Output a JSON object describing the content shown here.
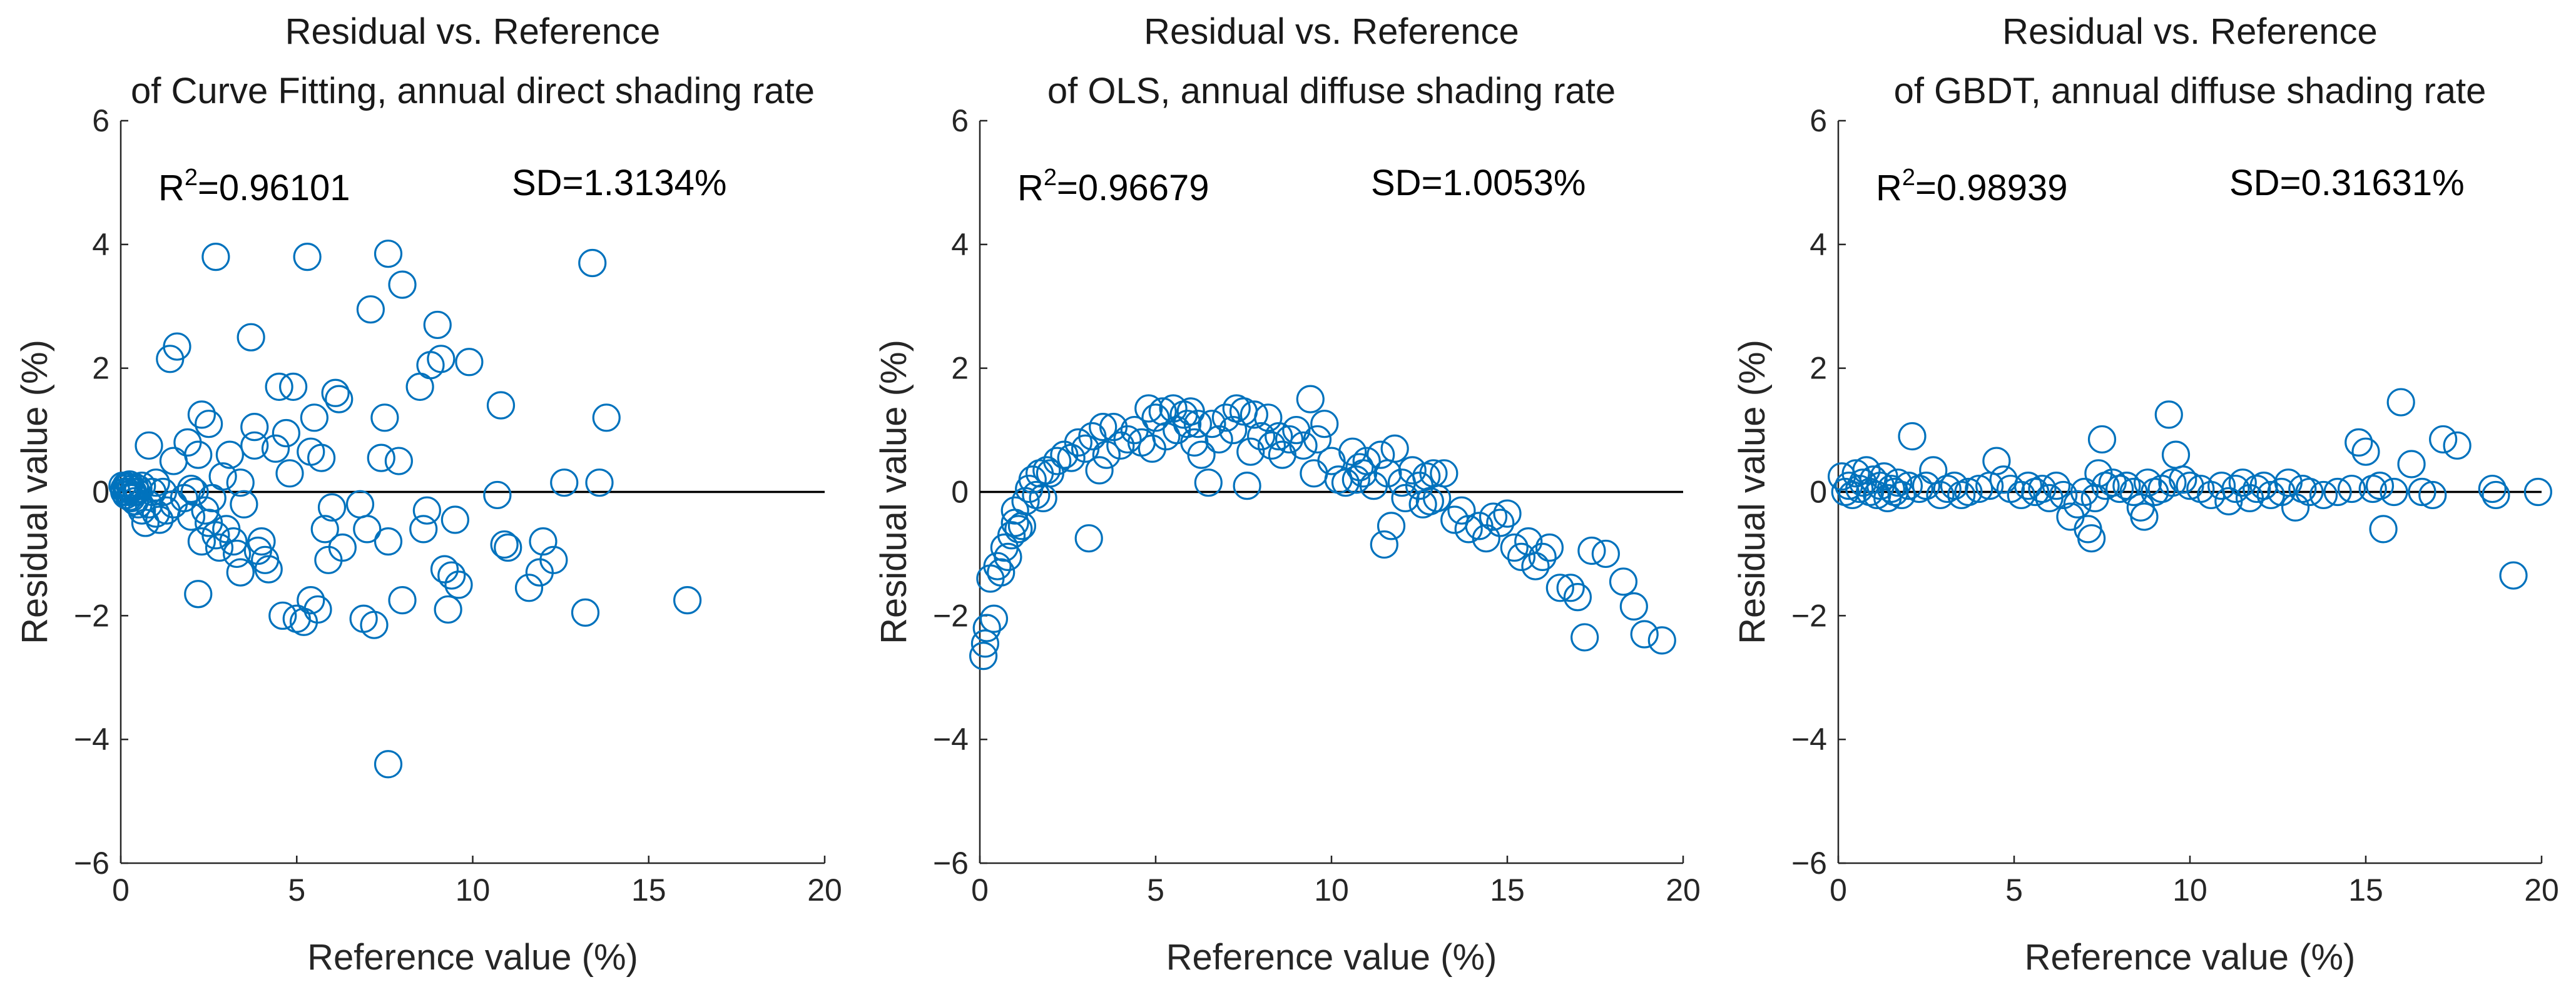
{
  "chart_data": [
    {
      "type": "scatter",
      "title_line1": "Residual vs. Reference",
      "title_line2": "of Curve Fitting, annual direct shading rate",
      "xlabel": "Reference value (%)",
      "ylabel": "Residual value (%)",
      "xlim": [
        0,
        20
      ],
      "ylim": [
        -6,
        6
      ],
      "xticks": [
        "0",
        "5",
        "10",
        "15",
        "20"
      ],
      "yticks": [
        "−6",
        "−4",
        "−2",
        "0",
        "2",
        "4",
        "6"
      ],
      "r2_label": "R",
      "r2_exp": "2",
      "r2_value": "=0.96101",
      "sd_text": "SD=1.3134%",
      "reference_line_y": 0,
      "points": [
        [
          0.05,
          0.1
        ],
        [
          0.1,
          0.05
        ],
        [
          0.1,
          0.0
        ],
        [
          0.15,
          0.1
        ],
        [
          0.15,
          -0.05
        ],
        [
          0.2,
          0.08
        ],
        [
          0.2,
          0.0
        ],
        [
          0.25,
          0.12
        ],
        [
          0.25,
          -0.08
        ],
        [
          0.3,
          0.05
        ],
        [
          0.3,
          -0.1
        ],
        [
          0.35,
          0.0
        ],
        [
          0.4,
          0.08
        ],
        [
          0.4,
          -0.15
        ],
        [
          0.45,
          0.0
        ],
        [
          0.5,
          -0.2
        ],
        [
          0.5,
          0.05
        ],
        [
          0.6,
          -0.3
        ],
        [
          0.6,
          0.1
        ],
        [
          0.7,
          -0.5
        ],
        [
          0.8,
          0.75
        ],
        [
          0.8,
          -0.2
        ],
        [
          0.9,
          0.0
        ],
        [
          1.0,
          -0.35
        ],
        [
          1.0,
          0.15
        ],
        [
          1.1,
          -0.45
        ],
        [
          1.2,
          0.0
        ],
        [
          1.3,
          -0.3
        ],
        [
          1.4,
          2.15
        ],
        [
          1.5,
          -0.2
        ],
        [
          1.5,
          0.5
        ],
        [
          1.6,
          2.35
        ],
        [
          1.8,
          -0.1
        ],
        [
          1.9,
          0.8
        ],
        [
          2.0,
          0.05
        ],
        [
          2.0,
          -0.4
        ],
        [
          2.1,
          0.0
        ],
        [
          2.2,
          -1.65
        ],
        [
          2.2,
          0.6
        ],
        [
          2.3,
          -0.8
        ],
        [
          2.3,
          1.25
        ],
        [
          2.4,
          -0.3
        ],
        [
          2.5,
          -0.5
        ],
        [
          2.5,
          1.1
        ],
        [
          2.6,
          -0.1
        ],
        [
          2.7,
          3.8
        ],
        [
          2.7,
          -0.7
        ],
        [
          2.8,
          -0.9
        ],
        [
          2.9,
          0.25
        ],
        [
          3.0,
          -0.6
        ],
        [
          3.1,
          0.6
        ],
        [
          3.2,
          -0.8
        ],
        [
          3.3,
          -1.0
        ],
        [
          3.4,
          0.15
        ],
        [
          3.4,
          -1.3
        ],
        [
          3.5,
          -0.2
        ],
        [
          3.7,
          2.5
        ],
        [
          3.8,
          1.05
        ],
        [
          3.8,
          0.75
        ],
        [
          3.9,
          -0.95
        ],
        [
          4.0,
          -0.8
        ],
        [
          4.1,
          -1.1
        ],
        [
          4.2,
          -1.25
        ],
        [
          4.4,
          0.7
        ],
        [
          4.5,
          1.7
        ],
        [
          4.6,
          -2.0
        ],
        [
          4.7,
          0.95
        ],
        [
          4.8,
          0.3
        ],
        [
          4.9,
          1.7
        ],
        [
          5.0,
          -2.05
        ],
        [
          5.2,
          -2.1
        ],
        [
          5.3,
          3.8
        ],
        [
          5.4,
          -1.75
        ],
        [
          5.4,
          0.65
        ],
        [
          5.5,
          1.2
        ],
        [
          5.6,
          -1.9
        ],
        [
          5.7,
          0.55
        ],
        [
          5.8,
          -0.6
        ],
        [
          5.9,
          -1.1
        ],
        [
          6.0,
          -0.25
        ],
        [
          6.1,
          1.6
        ],
        [
          6.2,
          1.5
        ],
        [
          6.3,
          -0.9
        ],
        [
          6.8,
          -0.2
        ],
        [
          6.9,
          -2.05
        ],
        [
          7.0,
          -0.6
        ],
        [
          7.1,
          2.95
        ],
        [
          7.2,
          -2.15
        ],
        [
          7.4,
          0.55
        ],
        [
          7.5,
          1.2
        ],
        [
          7.6,
          3.85
        ],
        [
          7.6,
          -0.8
        ],
        [
          7.6,
          -4.4
        ],
        [
          7.9,
          0.5
        ],
        [
          8.0,
          3.35
        ],
        [
          8.0,
          -1.75
        ],
        [
          8.5,
          1.7
        ],
        [
          8.6,
          -0.6
        ],
        [
          8.7,
          -0.3
        ],
        [
          8.8,
          2.05
        ],
        [
          9.0,
          2.7
        ],
        [
          9.1,
          2.15
        ],
        [
          9.2,
          -1.25
        ],
        [
          9.3,
          -1.9
        ],
        [
          9.4,
          -1.35
        ],
        [
          9.5,
          -0.45
        ],
        [
          9.6,
          -1.5
        ],
        [
          9.9,
          2.1
        ],
        [
          10.7,
          -0.05
        ],
        [
          10.8,
          1.4
        ],
        [
          10.9,
          -0.85
        ],
        [
          11.0,
          -0.9
        ],
        [
          11.6,
          -1.55
        ],
        [
          11.9,
          -1.3
        ],
        [
          12.0,
          -0.8
        ],
        [
          12.3,
          -1.1
        ],
        [
          12.6,
          0.15
        ],
        [
          13.2,
          -1.95
        ],
        [
          13.4,
          3.7
        ],
        [
          13.6,
          0.15
        ],
        [
          13.8,
          1.2
        ],
        [
          16.1,
          -1.75
        ]
      ]
    },
    {
      "type": "scatter",
      "title_line1": "Residual vs. Reference",
      "title_line2": "of OLS, annual diffuse shading rate",
      "xlabel": "Reference value (%)",
      "ylabel": "Residual value (%)",
      "xlim": [
        0,
        20
      ],
      "ylim": [
        -6,
        6
      ],
      "xticks": [
        "0",
        "5",
        "10",
        "15",
        "20"
      ],
      "yticks": [
        "−6",
        "−4",
        "−2",
        "0",
        "2",
        "4",
        "6"
      ],
      "r2_label": "R",
      "r2_exp": "2",
      "r2_value": "=0.96679",
      "sd_text": "SD=1.0053%",
      "reference_line_y": 0,
      "points": [
        [
          0.1,
          -2.65
        ],
        [
          0.15,
          -2.45
        ],
        [
          0.2,
          -2.2
        ],
        [
          0.3,
          -1.4
        ],
        [
          0.4,
          -2.05
        ],
        [
          0.5,
          -1.2
        ],
        [
          0.6,
          -1.3
        ],
        [
          0.7,
          -0.9
        ],
        [
          0.8,
          -1.05
        ],
        [
          0.9,
          -0.7
        ],
        [
          1.0,
          -0.5
        ],
        [
          1.0,
          -0.3
        ],
        [
          1.1,
          -0.6
        ],
        [
          1.2,
          -0.55
        ],
        [
          1.3,
          -0.15
        ],
        [
          1.4,
          0.05
        ],
        [
          1.5,
          0.2
        ],
        [
          1.6,
          -0.05
        ],
        [
          1.7,
          0.3
        ],
        [
          1.8,
          -0.1
        ],
        [
          1.9,
          0.35
        ],
        [
          2.0,
          0.3
        ],
        [
          2.2,
          0.5
        ],
        [
          2.4,
          0.6
        ],
        [
          2.6,
          0.55
        ],
        [
          2.8,
          0.8
        ],
        [
          3.0,
          0.7
        ],
        [
          3.1,
          -0.75
        ],
        [
          3.2,
          0.9
        ],
        [
          3.4,
          0.35
        ],
        [
          3.5,
          1.05
        ],
        [
          3.6,
          0.6
        ],
        [
          3.8,
          1.05
        ],
        [
          4.0,
          0.75
        ],
        [
          4.2,
          0.85
        ],
        [
          4.4,
          1.0
        ],
        [
          4.6,
          0.8
        ],
        [
          4.8,
          1.35
        ],
        [
          4.9,
          0.7
        ],
        [
          5.0,
          1.2
        ],
        [
          5.2,
          1.3
        ],
        [
          5.3,
          0.9
        ],
        [
          5.5,
          1.35
        ],
        [
          5.6,
          1.0
        ],
        [
          5.8,
          1.25
        ],
        [
          5.9,
          1.1
        ],
        [
          6.0,
          1.3
        ],
        [
          6.1,
          0.8
        ],
        [
          6.2,
          1.1
        ],
        [
          6.3,
          0.6
        ],
        [
          6.5,
          0.15
        ],
        [
          6.6,
          1.1
        ],
        [
          6.8,
          0.85
        ],
        [
          7.0,
          1.2
        ],
        [
          7.2,
          1.0
        ],
        [
          7.3,
          1.35
        ],
        [
          7.5,
          1.3
        ],
        [
          7.6,
          0.1
        ],
        [
          7.7,
          0.65
        ],
        [
          7.8,
          1.25
        ],
        [
          8.0,
          0.9
        ],
        [
          8.2,
          1.2
        ],
        [
          8.3,
          0.75
        ],
        [
          8.5,
          0.9
        ],
        [
          8.6,
          0.6
        ],
        [
          8.8,
          0.85
        ],
        [
          9.0,
          1.0
        ],
        [
          9.2,
          0.75
        ],
        [
          9.4,
          1.5
        ],
        [
          9.5,
          0.3
        ],
        [
          9.6,
          0.85
        ],
        [
          9.8,
          1.1
        ],
        [
          10.0,
          0.5
        ],
        [
          10.2,
          0.2
        ],
        [
          10.4,
          0.15
        ],
        [
          10.6,
          0.65
        ],
        [
          10.7,
          0.2
        ],
        [
          10.8,
          0.4
        ],
        [
          10.9,
          0.3
        ],
        [
          11.0,
          0.5
        ],
        [
          11.2,
          0.1
        ],
        [
          11.4,
          0.6
        ],
        [
          11.5,
          -0.85
        ],
        [
          11.6,
          0.3
        ],
        [
          11.7,
          -0.55
        ],
        [
          11.8,
          0.7
        ],
        [
          12.0,
          0.15
        ],
        [
          12.1,
          -0.1
        ],
        [
          12.3,
          0.35
        ],
        [
          12.5,
          0.1
        ],
        [
          12.6,
          -0.2
        ],
        [
          12.7,
          0.25
        ],
        [
          12.8,
          -0.15
        ],
        [
          12.9,
          0.3
        ],
        [
          13.0,
          -0.1
        ],
        [
          13.2,
          0.3
        ],
        [
          13.5,
          -0.45
        ],
        [
          13.7,
          -0.3
        ],
        [
          13.9,
          -0.6
        ],
        [
          14.2,
          -0.55
        ],
        [
          14.4,
          -0.75
        ],
        [
          14.6,
          -0.4
        ],
        [
          14.8,
          -0.5
        ],
        [
          15.0,
          -0.35
        ],
        [
          15.2,
          -0.9
        ],
        [
          15.4,
          -1.05
        ],
        [
          15.6,
          -0.8
        ],
        [
          15.8,
          -1.2
        ],
        [
          16.0,
          -1.05
        ],
        [
          16.2,
          -0.9
        ],
        [
          16.5,
          -1.55
        ],
        [
          16.8,
          -1.55
        ],
        [
          17.0,
          -1.7
        ],
        [
          17.2,
          -2.35
        ],
        [
          17.4,
          -0.95
        ],
        [
          17.8,
          -1.0
        ],
        [
          18.3,
          -1.45
        ],
        [
          18.6,
          -1.85
        ],
        [
          18.9,
          -2.3
        ],
        [
          19.4,
          -2.4
        ]
      ]
    },
    {
      "type": "scatter",
      "title_line1": "Residual vs. Reference",
      "title_line2": "of GBDT, annual diffuse shading rate",
      "xlabel": "Reference value (%)",
      "ylabel": "Residual value (%)",
      "xlim": [
        0,
        20
      ],
      "ylim": [
        -6,
        6
      ],
      "xticks": [
        "0",
        "5",
        "10",
        "15",
        "20"
      ],
      "yticks": [
        "−6",
        "−4",
        "−2",
        "0",
        "2",
        "4",
        "6"
      ],
      "r2_label": "R",
      "r2_exp": "2",
      "r2_value": "=0.98939",
      "sd_text": "SD=0.31631%",
      "reference_line_y": 0,
      "points": [
        [
          0.1,
          0.25
        ],
        [
          0.2,
          0.0
        ],
        [
          0.3,
          0.1
        ],
        [
          0.4,
          -0.05
        ],
        [
          0.5,
          0.3
        ],
        [
          0.6,
          0.05
        ],
        [
          0.7,
          0.15
        ],
        [
          0.8,
          0.35
        ],
        [
          0.9,
          0.0
        ],
        [
          1.0,
          0.2
        ],
        [
          1.1,
          -0.05
        ],
        [
          1.2,
          0.1
        ],
        [
          1.3,
          0.25
        ],
        [
          1.4,
          -0.1
        ],
        [
          1.5,
          0.05
        ],
        [
          1.6,
          0.0
        ],
        [
          1.7,
          0.15
        ],
        [
          1.8,
          -0.05
        ],
        [
          2.0,
          0.1
        ],
        [
          2.1,
          0.9
        ],
        [
          2.3,
          0.05
        ],
        [
          2.5,
          0.1
        ],
        [
          2.7,
          0.35
        ],
        [
          2.9,
          -0.05
        ],
        [
          3.1,
          0.05
        ],
        [
          3.3,
          0.1
        ],
        [
          3.5,
          -0.05
        ],
        [
          3.7,
          0.0
        ],
        [
          4.0,
          0.05
        ],
        [
          4.3,
          0.1
        ],
        [
          4.5,
          0.5
        ],
        [
          4.7,
          0.2
        ],
        [
          4.9,
          0.05
        ],
        [
          5.2,
          -0.05
        ],
        [
          5.4,
          0.1
        ],
        [
          5.6,
          0.0
        ],
        [
          5.8,
          0.05
        ],
        [
          6.0,
          -0.1
        ],
        [
          6.2,
          0.1
        ],
        [
          6.4,
          -0.05
        ],
        [
          6.6,
          -0.4
        ],
        [
          6.8,
          -0.2
        ],
        [
          7.0,
          0.0
        ],
        [
          7.1,
          -0.6
        ],
        [
          7.2,
          -0.75
        ],
        [
          7.3,
          -0.1
        ],
        [
          7.4,
          0.3
        ],
        [
          7.5,
          0.85
        ],
        [
          7.6,
          0.1
        ],
        [
          7.8,
          0.15
        ],
        [
          8.0,
          0.05
        ],
        [
          8.2,
          0.1
        ],
        [
          8.4,
          0.0
        ],
        [
          8.6,
          -0.25
        ],
        [
          8.7,
          -0.4
        ],
        [
          8.8,
          0.15
        ],
        [
          9.0,
          0.0
        ],
        [
          9.2,
          0.05
        ],
        [
          9.4,
          1.25
        ],
        [
          9.5,
          0.15
        ],
        [
          9.6,
          0.6
        ],
        [
          9.8,
          0.2
        ],
        [
          10.0,
          0.1
        ],
        [
          10.3,
          0.05
        ],
        [
          10.6,
          -0.05
        ],
        [
          10.9,
          0.1
        ],
        [
          11.1,
          -0.15
        ],
        [
          11.3,
          0.05
        ],
        [
          11.5,
          0.15
        ],
        [
          11.7,
          -0.1
        ],
        [
          11.9,
          0.05
        ],
        [
          12.1,
          0.1
        ],
        [
          12.3,
          -0.05
        ],
        [
          12.6,
          0.0
        ],
        [
          12.8,
          0.15
        ],
        [
          13.0,
          -0.25
        ],
        [
          13.2,
          0.05
        ],
        [
          13.4,
          0.0
        ],
        [
          13.8,
          -0.05
        ],
        [
          14.2,
          0.0
        ],
        [
          14.6,
          0.05
        ],
        [
          14.8,
          0.8
        ],
        [
          15.0,
          0.65
        ],
        [
          15.2,
          0.05
        ],
        [
          15.4,
          0.1
        ],
        [
          15.5,
          -0.6
        ],
        [
          15.8,
          0.0
        ],
        [
          16.0,
          1.45
        ],
        [
          16.3,
          0.45
        ],
        [
          16.6,
          0.0
        ],
        [
          16.9,
          -0.05
        ],
        [
          17.2,
          0.85
        ],
        [
          17.6,
          0.75
        ],
        [
          18.6,
          0.05
        ],
        [
          18.7,
          -0.05
        ],
        [
          19.2,
          -1.35
        ],
        [
          19.9,
          0.0
        ]
      ]
    }
  ]
}
